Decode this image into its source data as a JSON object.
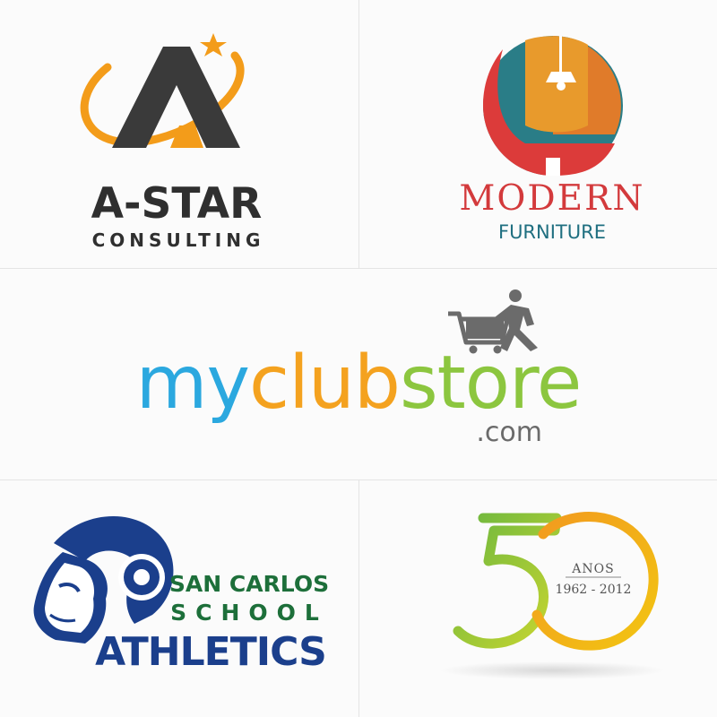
{
  "logos": {
    "astar": {
      "name": "A-STAR",
      "tagline": "CONSULTING",
      "colors": {
        "dark": "#3a3a3a",
        "orange": "#f39c1a"
      },
      "icon": "letter-a-star-orbit"
    },
    "modern": {
      "name": "MODERN",
      "tagline": "FURNITURE",
      "colors": {
        "red": "#dc3b3a",
        "orange": "#e89a2c",
        "teal": "#2a7d87",
        "name": "#d33a3c",
        "tagline": "#1f6f80"
      },
      "icon": "chair-lamp-circle"
    },
    "myclubstore": {
      "parts": [
        "my",
        "club",
        "store"
      ],
      "suffix": ".com",
      "colors": {
        "my": "#2ba8df",
        "club": "#f4a21f",
        "store": "#8cc63f",
        "gray": "#6b6b6b"
      },
      "icon": "shopping-cart-person"
    },
    "sancarlos": {
      "line1": "SAN CARLOS",
      "line2": "SCHOOL",
      "line3": "ATHLETICS",
      "colors": {
        "green": "#1d6f3a",
        "navy": "#1b3f8c"
      },
      "icon": "ram-head"
    },
    "anniversary": {
      "number": "5",
      "label": "ANOS",
      "years": "1962 - 2012",
      "colors": {
        "green": "#6cb73f",
        "yellow": "#f2c512",
        "orange": "#f29a1f",
        "text": "#555555"
      },
      "icon": "fifty-swoosh"
    }
  }
}
